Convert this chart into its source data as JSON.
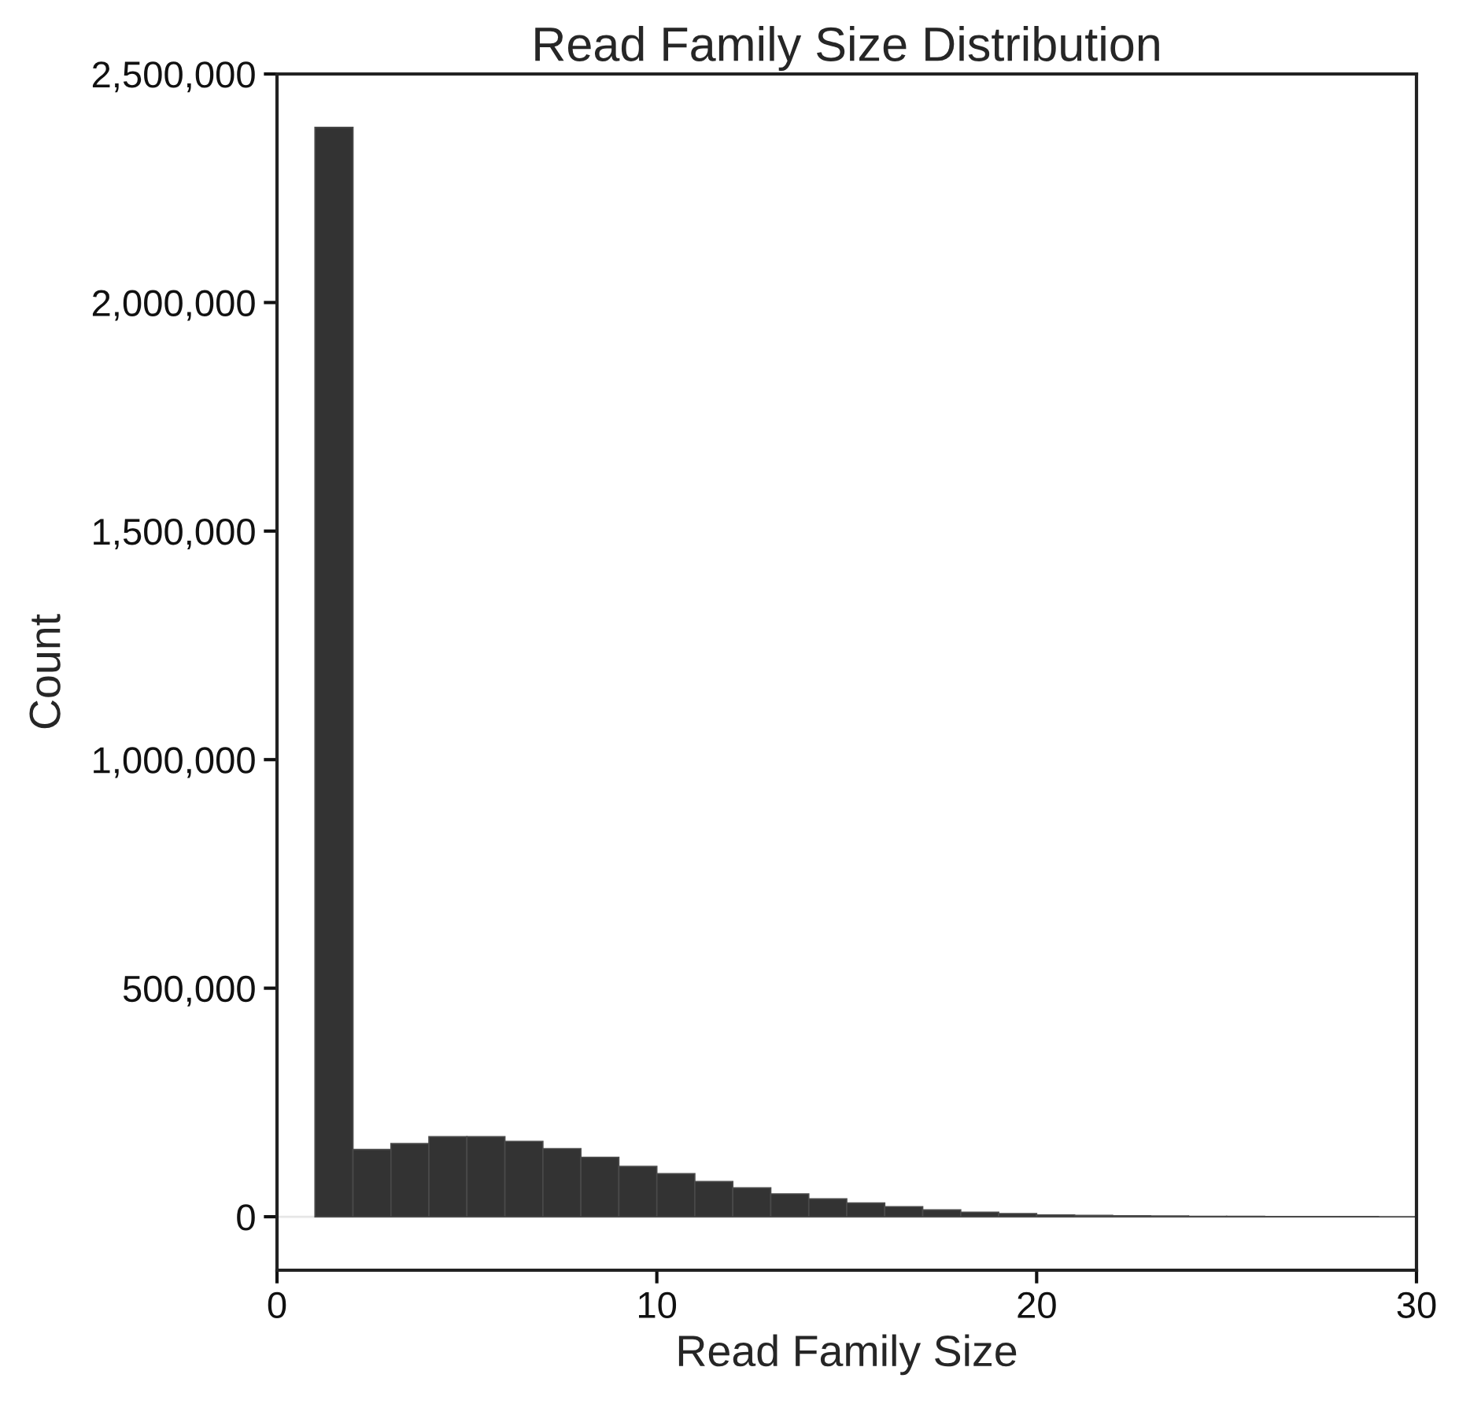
{
  "chart_data": {
    "type": "histogram",
    "title": "Read Family Size Distribution",
    "xlabel": "Read Family Size",
    "ylabel": "Count",
    "bins": [
      1,
      2,
      3,
      4,
      5,
      6,
      7,
      8,
      9,
      10,
      11,
      12,
      13,
      14,
      15,
      16,
      17,
      18,
      19,
      20,
      21,
      22,
      23,
      24,
      25,
      26,
      27,
      28,
      29,
      30
    ],
    "values": [
      2383000,
      147000,
      160000,
      175000,
      175000,
      165000,
      149000,
      130000,
      110000,
      94000,
      77000,
      63000,
      50000,
      39000,
      30000,
      22000,
      15000,
      10000,
      7000,
      4000,
      3000,
      2000,
      1500,
      1000,
      700,
      500,
      300,
      200,
      100
    ],
    "color": "#333333",
    "xlim": [
      0,
      30
    ],
    "xticks": [
      0,
      10,
      20,
      30
    ],
    "ylim": [
      -117000,
      2500000
    ],
    "yticks": [
      {
        "value": 0,
        "label": "0"
      },
      {
        "value": 500000,
        "label": "500,000"
      },
      {
        "value": 1000000,
        "label": "1,000,000"
      },
      {
        "value": 1500000,
        "label": "1,500,000"
      },
      {
        "value": 2000000,
        "label": "2,000,000"
      },
      {
        "value": 2500000,
        "label": "2,500,000"
      }
    ],
    "ref_lines": [
      {
        "axis": "y",
        "value": 0,
        "color": "#e6e6e6"
      }
    ],
    "grid": false
  }
}
